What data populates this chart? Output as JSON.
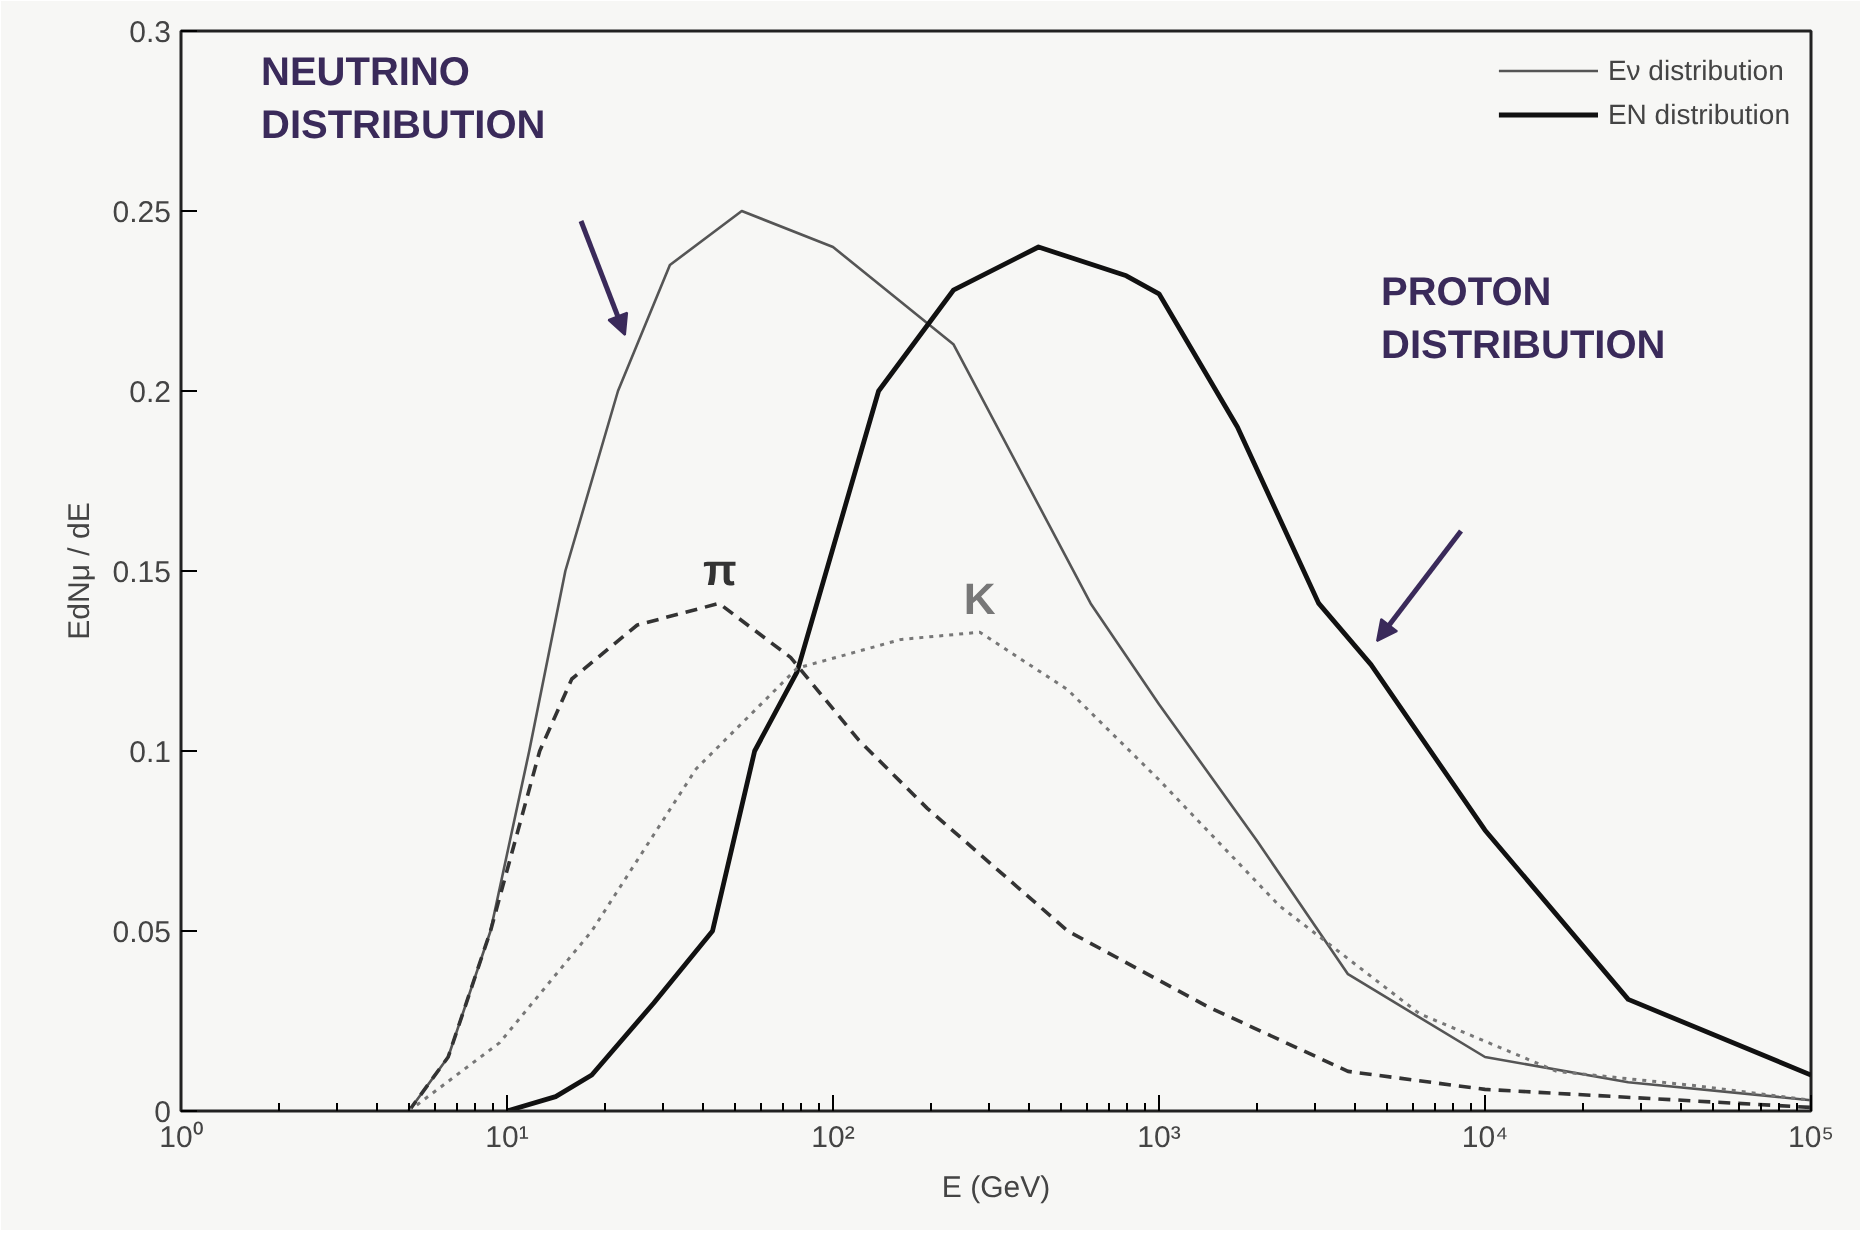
{
  "chart_data": {
    "type": "line",
    "xlabel": "E (GeV)",
    "ylabel": "EdNμ / dE",
    "log": "x",
    "xlim": [
      1,
      100000
    ],
    "ylim": [
      0,
      0.3
    ],
    "xticks": [
      {
        "value": 1,
        "label": "10⁰"
      },
      {
        "value": 10,
        "label": "10¹"
      },
      {
        "value": 100,
        "label": "10²"
      },
      {
        "value": 1000,
        "label": "10³"
      },
      {
        "value": 10000,
        "label": "10⁴"
      },
      {
        "value": 100000,
        "label": "10⁵"
      }
    ],
    "yticks": [
      0,
      0.05,
      0.1,
      0.15,
      0.2,
      0.25,
      0.3
    ],
    "grid": false,
    "legend": "top right",
    "series": [
      {
        "name": "Eν distribution",
        "color": "#555555",
        "line_style": "solid",
        "x": [
          5,
          6.6,
          8.9,
          11.7,
          15.1,
          21.9,
          31.6,
          52.5,
          100,
          234,
          617,
          1000,
          2000,
          3800,
          10000,
          27500,
          100000
        ],
        "values": [
          0,
          0.015,
          0.05,
          0.1,
          0.15,
          0.2,
          0.235,
          0.25,
          0.24,
          0.213,
          0.141,
          0.113,
          0.075,
          0.038,
          0.015,
          0.008,
          0.003
        ]
      },
      {
        "name": "EN distribution",
        "color": "#111111",
        "line_style": "solid",
        "x": [
          10,
          14.1,
          18.2,
          28.2,
          42.7,
          57.5,
          77.6,
          138,
          234,
          427,
          794,
          1000,
          1740,
          3090,
          4470,
          10000,
          27500,
          100000
        ],
        "values": [
          0,
          0.004,
          0.01,
          0.03,
          0.05,
          0.1,
          0.122,
          0.2,
          0.228,
          0.24,
          0.232,
          0.227,
          0.19,
          0.141,
          0.124,
          0.078,
          0.031,
          0.01
        ]
      },
      {
        "name": "π",
        "color": "#333333",
        "line_style": "dashed",
        "x": [
          5,
          6.6,
          8.9,
          12.6,
          15.8,
          25.1,
          44.7,
          74.1,
          120,
          195,
          525,
          1410,
          3800,
          10000,
          100000
        ],
        "values": [
          0,
          0.015,
          0.05,
          0.1,
          0.12,
          0.135,
          0.141,
          0.126,
          0.103,
          0.084,
          0.05,
          0.029,
          0.011,
          0.006,
          0.001
        ]
      },
      {
        "name": "K",
        "color": "#777777",
        "line_style": "dotted",
        "x": [
          5,
          9.5,
          18.2,
          38,
          77.6,
          162,
          282,
          525,
          1000,
          2340,
          6300,
          16600,
          44700,
          100000
        ],
        "values": [
          0,
          0.019,
          0.05,
          0.095,
          0.123,
          0.131,
          0.133,
          0.117,
          0.092,
          0.057,
          0.027,
          0.011,
          0.007,
          0.003
        ]
      }
    ],
    "annotations": [
      "NEUTRINO DISTRIBUTION",
      "PROTON DISTRIBUTION"
    ]
  }
}
